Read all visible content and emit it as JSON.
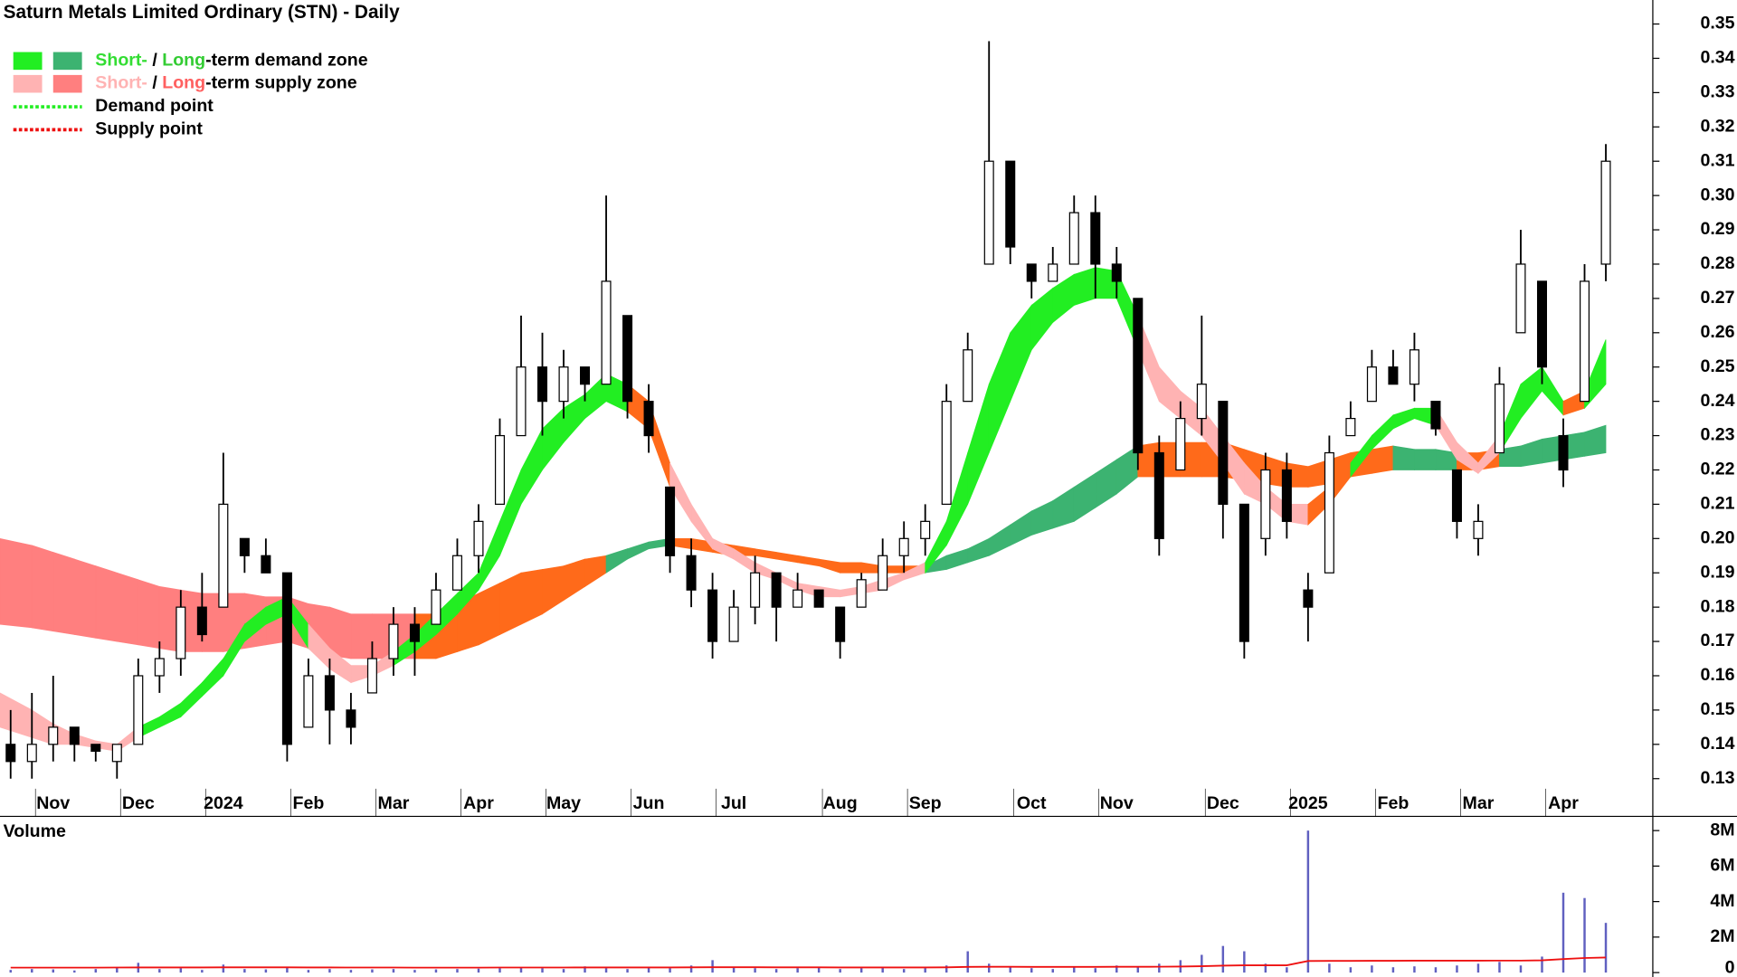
{
  "chart_data": {
    "type": "candlestick",
    "title": "Saturn Metals Limited Ordinary (STN) - Daily",
    "categories": [
      null,
      null,
      "Nov",
      null,
      null,
      null,
      "Dec",
      null,
      null,
      null,
      "2024",
      null,
      null,
      null,
      "Feb",
      null,
      null,
      null,
      "Mar",
      null,
      null,
      null,
      "Apr",
      null,
      null,
      null,
      "May",
      null,
      null,
      null,
      "Jun",
      null,
      null,
      null,
      "Jul",
      null,
      null,
      null,
      null,
      "Aug",
      null,
      null,
      null,
      "Sep",
      null,
      null,
      null,
      null,
      "Oct",
      null,
      null,
      null,
      "Nov",
      null,
      null,
      null,
      null,
      "Dec",
      null,
      null,
      null,
      "2025",
      null,
      null,
      null,
      "Feb",
      null,
      null,
      null,
      "Mar",
      null,
      null,
      null,
      "Apr",
      null,
      null
    ],
    "open": [
      0.14,
      0.135,
      0.14,
      0.145,
      0.14,
      0.135,
      0.14,
      0.16,
      0.165,
      0.18,
      0.18,
      0.2,
      0.195,
      0.19,
      0.145,
      0.16,
      0.15,
      0.155,
      0.165,
      0.175,
      0.175,
      0.185,
      0.195,
      0.21,
      0.23,
      0.25,
      0.24,
      0.25,
      0.245,
      0.265,
      0.24,
      0.215,
      0.195,
      0.185,
      0.17,
      0.18,
      0.19,
      0.18,
      0.185,
      0.18,
      0.18,
      0.185,
      0.195,
      0.2,
      0.21,
      0.24,
      0.28,
      0.31,
      0.28,
      0.275,
      0.28,
      0.295,
      0.28,
      0.27,
      0.225,
      0.22,
      0.235,
      0.24,
      0.21,
      0.2,
      0.22,
      0.185,
      0.19,
      0.23,
      0.24,
      0.25,
      0.245,
      0.24,
      0.22,
      0.2,
      0.225,
      0.26,
      0.275,
      0.23,
      0.24,
      0.28
    ],
    "high": [
      0.15,
      0.155,
      0.16,
      0.145,
      0.14,
      0.14,
      0.165,
      0.17,
      0.185,
      0.19,
      0.225,
      0.2,
      0.2,
      0.19,
      0.165,
      0.165,
      0.155,
      0.17,
      0.18,
      0.18,
      0.19,
      0.2,
      0.21,
      0.235,
      0.265,
      0.26,
      0.255,
      0.25,
      0.3,
      0.265,
      0.245,
      0.215,
      0.2,
      0.19,
      0.185,
      0.195,
      0.19,
      0.19,
      0.185,
      0.18,
      0.19,
      0.2,
      0.205,
      0.21,
      0.245,
      0.26,
      0.345,
      0.31,
      0.28,
      0.285,
      0.3,
      0.3,
      0.285,
      0.27,
      0.23,
      0.24,
      0.265,
      0.24,
      0.21,
      0.225,
      0.225,
      0.19,
      0.23,
      0.24,
      0.255,
      0.255,
      0.26,
      0.24,
      0.22,
      0.21,
      0.25,
      0.29,
      0.275,
      0.235,
      0.28,
      0.315
    ],
    "low": [
      0.13,
      0.13,
      0.135,
      0.135,
      0.135,
      0.13,
      0.14,
      0.155,
      0.16,
      0.17,
      0.18,
      0.19,
      0.19,
      0.135,
      0.145,
      0.14,
      0.14,
      0.155,
      0.16,
      0.16,
      0.175,
      0.185,
      0.19,
      0.21,
      0.23,
      0.23,
      0.235,
      0.24,
      0.245,
      0.235,
      0.225,
      0.19,
      0.18,
      0.165,
      0.17,
      0.175,
      0.17,
      0.18,
      0.18,
      0.165,
      0.18,
      0.185,
      0.19,
      0.195,
      0.21,
      0.24,
      0.28,
      0.28,
      0.27,
      0.275,
      0.28,
      0.27,
      0.27,
      0.22,
      0.195,
      0.22,
      0.23,
      0.2,
      0.165,
      0.195,
      0.2,
      0.17,
      0.19,
      0.23,
      0.24,
      0.245,
      0.24,
      0.23,
      0.2,
      0.195,
      0.225,
      0.26,
      0.245,
      0.215,
      0.24,
      0.275
    ],
    "close": [
      0.135,
      0.14,
      0.145,
      0.14,
      0.138,
      0.14,
      0.16,
      0.165,
      0.18,
      0.172,
      0.21,
      0.195,
      0.19,
      0.14,
      0.16,
      0.15,
      0.145,
      0.165,
      0.175,
      0.17,
      0.185,
      0.195,
      0.205,
      0.23,
      0.25,
      0.24,
      0.25,
      0.245,
      0.275,
      0.24,
      0.23,
      0.195,
      0.185,
      0.17,
      0.18,
      0.19,
      0.18,
      0.185,
      0.18,
      0.17,
      0.188,
      0.195,
      0.2,
      0.205,
      0.24,
      0.255,
      0.31,
      0.285,
      0.275,
      0.28,
      0.295,
      0.28,
      0.275,
      0.225,
      0.2,
      0.235,
      0.245,
      0.21,
      0.17,
      0.22,
      0.205,
      0.18,
      0.225,
      0.235,
      0.25,
      0.245,
      0.255,
      0.232,
      0.205,
      0.205,
      0.245,
      0.28,
      0.25,
      0.22,
      0.275,
      0.31
    ],
    "up_color": "#ffffff",
    "down_color": "#000000",
    "bands": [
      {
        "upper": [
          0.2,
          0.198,
          0.196,
          0.194,
          0.192,
          0.19,
          0.188,
          0.186,
          0.185,
          0.184,
          0.184,
          0.184,
          0.183,
          0.183,
          0.181,
          0.18,
          0.178,
          0.178,
          0.178,
          0.178,
          0.178,
          0.181,
          0.184,
          0.187,
          0.19,
          0.191,
          0.192,
          0.194,
          0.195,
          0.197,
          0.199,
          0.2,
          0.2,
          0.199,
          0.198,
          0.197,
          0.196,
          0.195,
          0.194,
          0.193,
          0.193,
          0.192,
          0.192,
          0.192,
          0.195,
          0.197,
          0.2,
          0.204,
          0.208,
          0.211,
          0.215,
          0.219,
          0.223,
          0.227,
          0.228,
          0.228,
          0.228,
          0.228,
          0.226,
          0.224,
          0.222,
          0.221,
          0.223,
          0.225,
          0.226,
          0.227,
          0.226,
          0.226,
          0.225,
          0.225,
          0.226,
          0.227,
          0.229,
          0.23,
          0.231,
          0.233
        ],
        "lower": [
          0.175,
          0.174,
          0.173,
          0.172,
          0.171,
          0.17,
          0.169,
          0.168,
          0.167,
          0.167,
          0.167,
          0.168,
          0.169,
          0.17,
          0.168,
          0.166,
          0.165,
          0.165,
          0.165,
          0.165,
          0.165,
          0.167,
          0.169,
          0.172,
          0.175,
          0.178,
          0.182,
          0.186,
          0.19,
          0.194,
          0.197,
          0.198,
          0.197,
          0.196,
          0.195,
          0.195,
          0.194,
          0.193,
          0.192,
          0.19,
          0.19,
          0.19,
          0.19,
          0.19,
          0.191,
          0.193,
          0.195,
          0.198,
          0.201,
          0.203,
          0.205,
          0.209,
          0.213,
          0.218,
          0.218,
          0.218,
          0.218,
          0.218,
          0.217,
          0.216,
          0.215,
          0.215,
          0.216,
          0.218,
          0.219,
          0.22,
          0.22,
          0.22,
          0.22,
          0.22,
          0.221,
          0.221,
          0.222,
          0.223,
          0.224,
          0.225
        ],
        "colors": [
          "#ff7f7f",
          "#ff7f7f",
          "#ff7f7f",
          "#ff7f7f",
          "#ff7f7f",
          "#ff7f7f",
          "#ff7f7f",
          "#ff7f7f",
          "#ff7f7f",
          "#ff7f7f",
          "#ff7f7f",
          "#ff7f7f",
          "#ff7f7f",
          "#ff7f7f",
          "#ff7f7f",
          "#ff7f7f",
          "#ff7f7f",
          "#ff7f7f",
          "#ff7f7f",
          "#ff6a1a",
          "#ff6a1a",
          "#ff6a1a",
          "#ff6a1a",
          "#ff6a1a",
          "#ff6a1a",
          "#ff6a1a",
          "#ff6a1a",
          "#ff6a1a",
          "#3cb371",
          "#3cb371",
          "#3cb371",
          "#ff6a1a",
          "#ff6a1a",
          "#ff6a1a",
          "#ff6a1a",
          "#ff6a1a",
          "#ff6a1a",
          "#ff6a1a",
          "#ff6a1a",
          "#ff6a1a",
          "#ff6a1a",
          "#ff6a1a",
          "#ff6a1a",
          "#3cb371",
          "#3cb371",
          "#3cb371",
          "#3cb371",
          "#3cb371",
          "#3cb371",
          "#3cb371",
          "#3cb371",
          "#3cb371",
          "#3cb371",
          "#ff6a1a",
          "#ff6a1a",
          "#ff6a1a",
          "#ff6a1a",
          "#ff6a1a",
          "#ff6a1a",
          "#ff6a1a",
          "#ff6a1a",
          "#ff6a1a",
          "#ff6a1a",
          "#ff6a1a",
          "#ff6a1a",
          "#3cb371",
          "#3cb371",
          "#3cb371",
          "#ff6a1a",
          "#ff6a1a",
          "#3cb371",
          "#3cb371",
          "#3cb371",
          "#3cb371",
          "#3cb371",
          "#3cb371"
        ]
      },
      {
        "upper": [
          0.155,
          0.15,
          0.146,
          0.143,
          0.141,
          0.14,
          0.145,
          0.148,
          0.152,
          0.158,
          0.165,
          0.175,
          0.18,
          0.183,
          0.175,
          0.168,
          0.163,
          0.163,
          0.167,
          0.172,
          0.178,
          0.184,
          0.19,
          0.205,
          0.22,
          0.232,
          0.238,
          0.242,
          0.248,
          0.245,
          0.24,
          0.222,
          0.21,
          0.2,
          0.197,
          0.193,
          0.19,
          0.187,
          0.186,
          0.185,
          0.186,
          0.188,
          0.19,
          0.193,
          0.205,
          0.225,
          0.245,
          0.26,
          0.268,
          0.273,
          0.277,
          0.279,
          0.278,
          0.265,
          0.25,
          0.243,
          0.238,
          0.23,
          0.222,
          0.215,
          0.21,
          0.21,
          0.215,
          0.222,
          0.23,
          0.236,
          0.238,
          0.238,
          0.228,
          0.222,
          0.23,
          0.245,
          0.25,
          0.24,
          0.243,
          0.258
        ],
        "lower": [
          0.145,
          0.142,
          0.14,
          0.14,
          0.139,
          0.138,
          0.142,
          0.145,
          0.148,
          0.154,
          0.16,
          0.17,
          0.175,
          0.178,
          0.168,
          0.162,
          0.158,
          0.16,
          0.163,
          0.167,
          0.172,
          0.178,
          0.185,
          0.195,
          0.21,
          0.22,
          0.228,
          0.235,
          0.24,
          0.237,
          0.232,
          0.215,
          0.205,
          0.197,
          0.194,
          0.19,
          0.188,
          0.185,
          0.183,
          0.183,
          0.184,
          0.185,
          0.188,
          0.19,
          0.198,
          0.21,
          0.225,
          0.24,
          0.255,
          0.263,
          0.268,
          0.27,
          0.27,
          0.255,
          0.24,
          0.235,
          0.23,
          0.222,
          0.213,
          0.21,
          0.205,
          0.204,
          0.21,
          0.218,
          0.226,
          0.232,
          0.235,
          0.233,
          0.223,
          0.219,
          0.225,
          0.235,
          0.243,
          0.236,
          0.238,
          0.245
        ],
        "colors": [
          "#ffb3b3",
          "#ffb3b3",
          "#ffb3b3",
          "#ffb3b3",
          "#ffb3b3",
          "#ffb3b3",
          "#22ee22",
          "#22ee22",
          "#22ee22",
          "#22ee22",
          "#22ee22",
          "#22ee22",
          "#22ee22",
          "#22ee22",
          "#ffb3b3",
          "#ffb3b3",
          "#ffb3b3",
          "#ffb3b3",
          "#22ee22",
          "#22ee22",
          "#22ee22",
          "#22ee22",
          "#22ee22",
          "#22ee22",
          "#22ee22",
          "#22ee22",
          "#22ee22",
          "#22ee22",
          "#22ee22",
          "#ff6a1a",
          "#ff6a1a",
          "#ffb3b3",
          "#ffb3b3",
          "#ffb3b3",
          "#ffb3b3",
          "#ffb3b3",
          "#ffb3b3",
          "#ffb3b3",
          "#ffb3b3",
          "#ffb3b3",
          "#ffb3b3",
          "#ffb3b3",
          "#ffb3b3",
          "#22ee22",
          "#22ee22",
          "#22ee22",
          "#22ee22",
          "#22ee22",
          "#22ee22",
          "#22ee22",
          "#22ee22",
          "#22ee22",
          "#22ee22",
          "#ffb3b3",
          "#ffb3b3",
          "#ffb3b3",
          "#ffb3b3",
          "#ffb3b3",
          "#ffb3b3",
          "#ffb3b3",
          "#ffb3b3",
          "#ff6a1a",
          "#ff6a1a",
          "#22ee22",
          "#22ee22",
          "#22ee22",
          "#22ee22",
          "#ffb3b3",
          "#ffb3b3",
          "#ffb3b3",
          "#22ee22",
          "#22ee22",
          "#22ee22",
          "#ff6a1a",
          "#22ee22",
          "#22ee22"
        ]
      }
    ],
    "ylim": [
      0.119,
      0.357
    ],
    "yticks": [
      0.13,
      0.14,
      0.15,
      0.16,
      0.17,
      0.18,
      0.19,
      {
        "value": 0.2,
        "label": "0.20"
      },
      0.21,
      0.22,
      0.23,
      0.24,
      0.25,
      0.26,
      0.27,
      0.28,
      0.29,
      {
        "value": 0.3,
        "label": "0.30"
      },
      0.31,
      0.32,
      0.33,
      0.34,
      0.35
    ],
    "legend": [
      {
        "swatches": [
          "#22ee22",
          "#3cb371"
        ],
        "parts": [
          {
            "text": "Short-",
            "color": "#33dd33"
          },
          {
            "text": " / ",
            "color": "#000000"
          },
          {
            "text": "Long",
            "color": "#33cc33"
          },
          {
            "text": "-term demand zone",
            "color": "#000000"
          }
        ]
      },
      {
        "swatches": [
          "#ffb3b3",
          "#ff7f7f"
        ],
        "parts": [
          {
            "text": "Short-",
            "color": "#ffb3b3"
          },
          {
            "text": " / ",
            "color": "#000000"
          },
          {
            "text": "Long",
            "color": "#ff6060"
          },
          {
            "text": "-term supply zone",
            "color": "#000000"
          }
        ]
      },
      {
        "line": "#22ee22",
        "parts": [
          {
            "text": "Demand point",
            "color": "#000000"
          }
        ]
      },
      {
        "line": "#ee1111",
        "parts": [
          {
            "text": "Supply point",
            "color": "#000000"
          }
        ]
      }
    ],
    "volume": {
      "label": "Volume",
      "color": "#6060c0",
      "values": [
        150000,
        200000,
        180000,
        120000,
        200000,
        300000,
        550000,
        200000,
        250000,
        150000,
        450000,
        200000,
        180000,
        300000,
        150000,
        200000,
        150000,
        180000,
        200000,
        150000,
        180000,
        200000,
        220000,
        250000,
        300000,
        250000,
        200000,
        350000,
        250000,
        200000,
        300000,
        250000,
        400000,
        700000,
        300000,
        250000,
        200000,
        250000,
        300000,
        200000,
        250000,
        300000,
        200000,
        250000,
        400000,
        1200000,
        500000,
        300000,
        250000,
        200000,
        300000,
        250000,
        400000,
        300000,
        500000,
        700000,
        1000000,
        1500000,
        1200000,
        500000,
        300000,
        8000000,
        500000,
        300000,
        400000,
        300000,
        350000,
        300000,
        400000,
        500000,
        600000,
        400000,
        900000,
        4500000,
        4200000,
        2800000
      ],
      "average": [
        280000,
        280000,
        280000,
        280000,
        280000,
        285000,
        290000,
        290000,
        290000,
        290000,
        295000,
        295000,
        295000,
        295000,
        290000,
        290000,
        285000,
        285000,
        285000,
        280000,
        280000,
        280000,
        280000,
        285000,
        285000,
        285000,
        285000,
        290000,
        290000,
        290000,
        290000,
        290000,
        295000,
        300000,
        300000,
        300000,
        295000,
        295000,
        295000,
        290000,
        290000,
        290000,
        290000,
        290000,
        295000,
        320000,
        325000,
        325000,
        320000,
        320000,
        320000,
        320000,
        325000,
        325000,
        330000,
        340000,
        360000,
        390000,
        410000,
        410000,
        410000,
        650000,
        660000,
        660000,
        665000,
        665000,
        670000,
        670000,
        670000,
        670000,
        675000,
        675000,
        690000,
        760000,
        820000,
        850000
      ],
      "average_color": "#ee1111",
      "ylim": [
        0,
        8800000
      ],
      "yticks": [
        0,
        {
          "value": 2000000,
          "label": "2M"
        },
        {
          "value": 4000000,
          "label": "4M"
        },
        {
          "value": 6000000,
          "label": "6M"
        },
        {
          "value": 8000000,
          "label": "8M"
        }
      ]
    }
  }
}
